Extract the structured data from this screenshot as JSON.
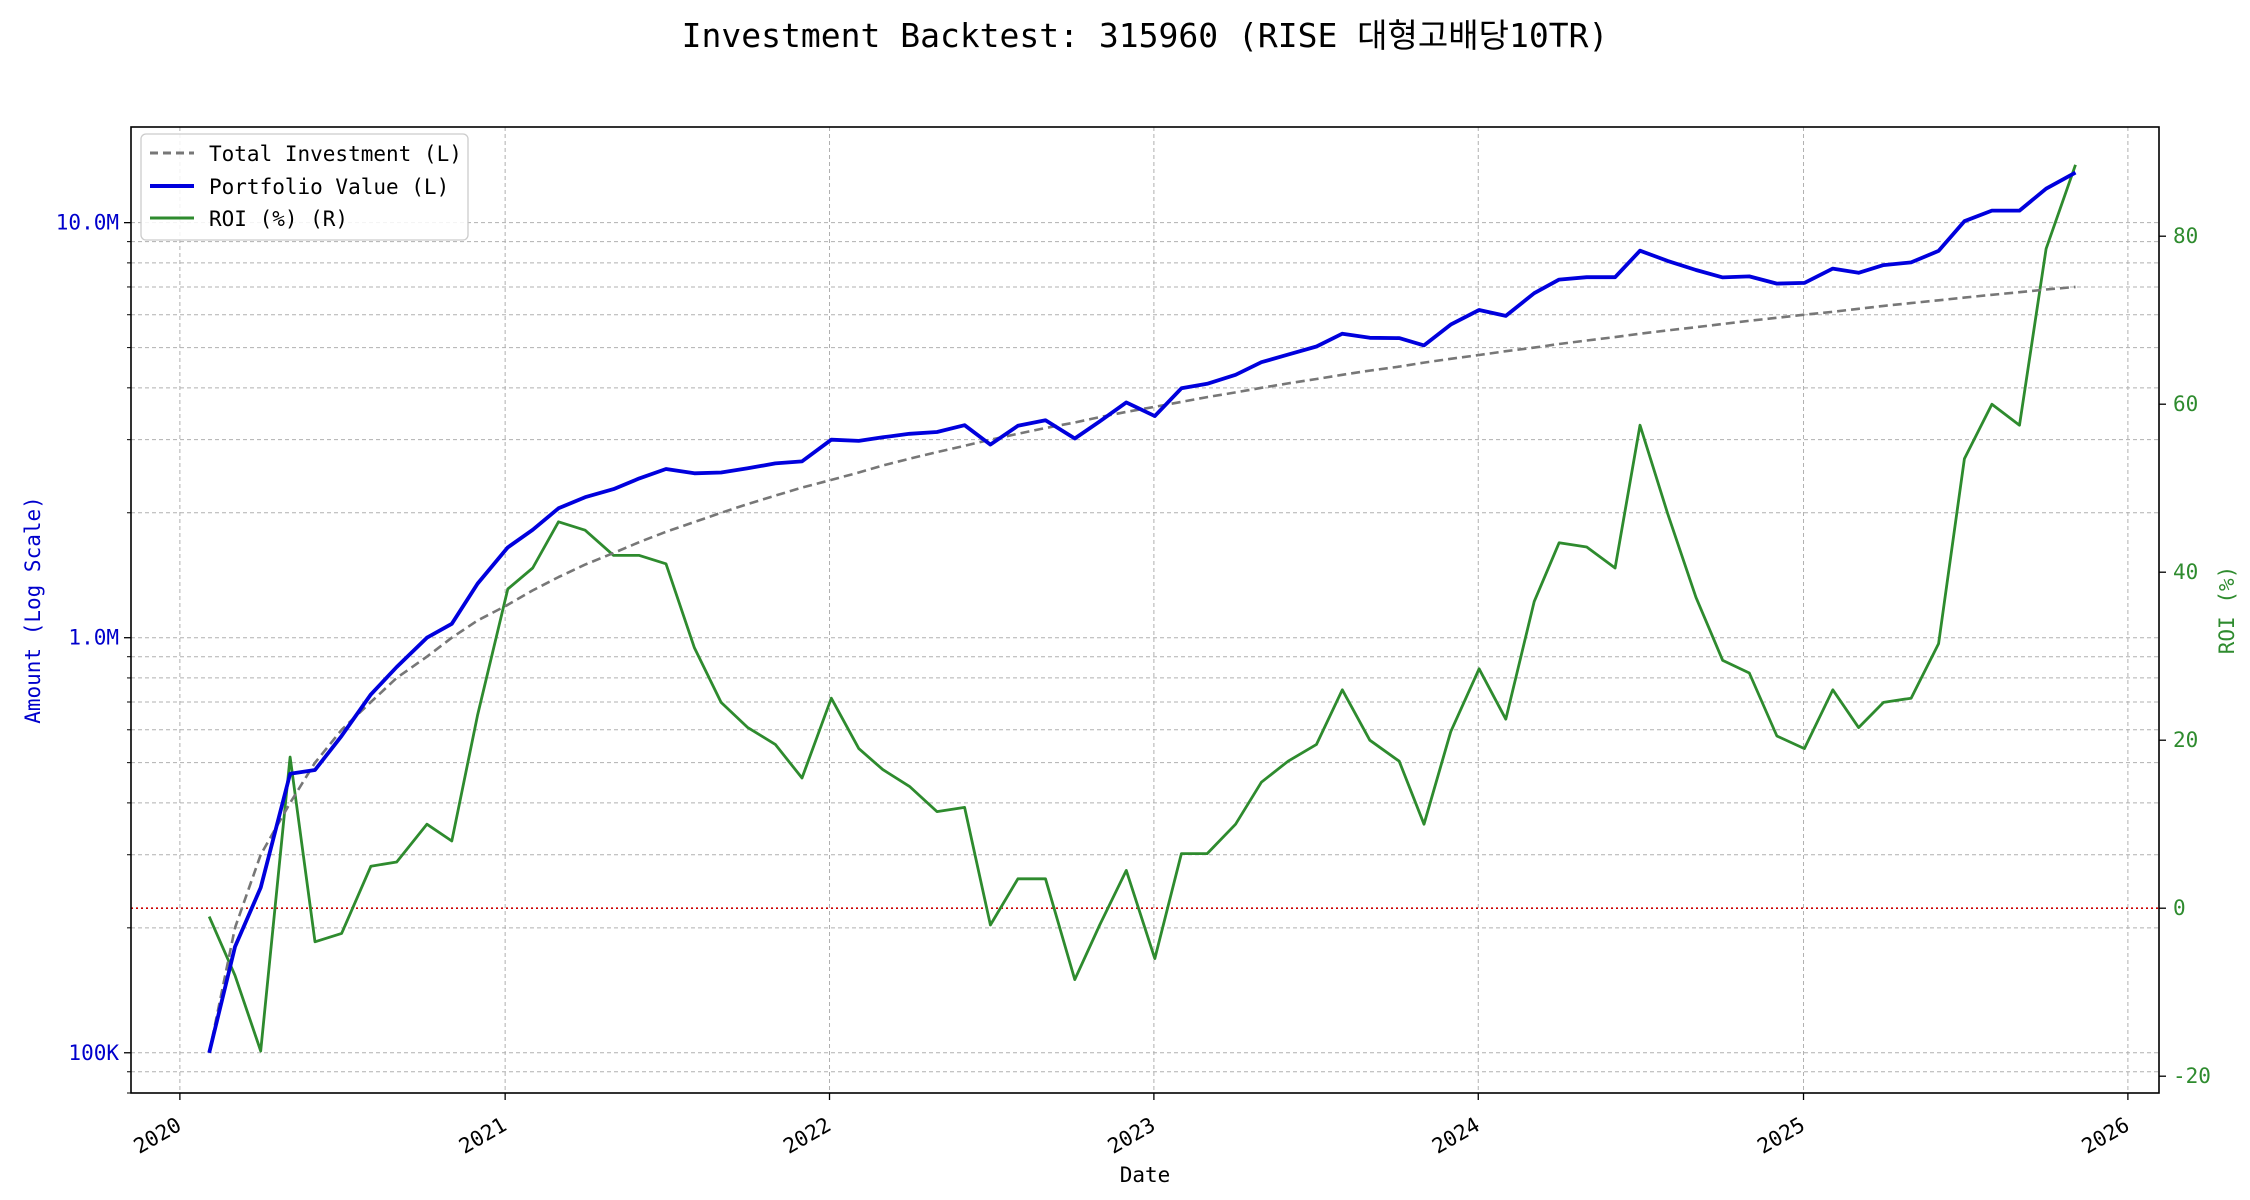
{
  "chart_data": {
    "type": "line",
    "title": "Investment Backtest: 315960 (RISE 대형고배당10TR)",
    "xlabel": "Date",
    "ylabel_left": "Amount (Log Scale)",
    "ylabel_right": "ROI (%)",
    "left_scale": "log",
    "left_ylim": [
      80000,
      17000000
    ],
    "right_ylim": [
      -22,
      93
    ],
    "xlim": [
      "2019-11-07",
      "2026-02-05"
    ],
    "grid": true,
    "legend_position": "top-left",
    "x_ticks": [
      {
        "date": "2020-01-01",
        "label": "2020"
      },
      {
        "date": "2021-01-01",
        "label": "2021"
      },
      {
        "date": "2022-01-01",
        "label": "2022"
      },
      {
        "date": "2023-01-01",
        "label": "2023"
      },
      {
        "date": "2024-01-01",
        "label": "2024"
      },
      {
        "date": "2025-01-01",
        "label": "2025"
      },
      {
        "date": "2026-01-01",
        "label": "2026"
      }
    ],
    "left_ticks": [
      {
        "value": 100000,
        "label": "100K"
      },
      {
        "value": 1000000,
        "label": "1.0M"
      },
      {
        "value": 10000000,
        "label": "10.0M"
      }
    ],
    "right_ticks": [
      -20,
      0,
      20,
      40,
      60,
      80
    ],
    "reference_line": {
      "axis": "right",
      "value": 0,
      "color": "#cc0000"
    },
    "dates": [
      "2020-02-03",
      "2020-03-03",
      "2020-04-01",
      "2020-05-04",
      "2020-06-01",
      "2020-07-01",
      "2020-08-03",
      "2020-09-01",
      "2020-10-05",
      "2020-11-02",
      "2020-12-01",
      "2021-01-04",
      "2021-02-01",
      "2021-03-02",
      "2021-04-01",
      "2021-05-03",
      "2021-06-01",
      "2021-07-01",
      "2021-08-02",
      "2021-09-01",
      "2021-10-01",
      "2021-11-01",
      "2021-12-01",
      "2022-01-03",
      "2022-02-03",
      "2022-03-02",
      "2022-04-01",
      "2022-05-02",
      "2022-06-02",
      "2022-07-01",
      "2022-08-01",
      "2022-09-01",
      "2022-10-04",
      "2022-11-01",
      "2022-12-01",
      "2023-01-02",
      "2023-02-01",
      "2023-03-02",
      "2023-04-03",
      "2023-05-02",
      "2023-06-01",
      "2023-07-03",
      "2023-08-01",
      "2023-09-01",
      "2023-10-04",
      "2023-11-01",
      "2023-12-01",
      "2024-01-02",
      "2024-02-01",
      "2024-03-04",
      "2024-04-01",
      "2024-05-02",
      "2024-06-03",
      "2024-07-01",
      "2024-08-01",
      "2024-09-02",
      "2024-10-02",
      "2024-11-01",
      "2024-12-02",
      "2025-01-02",
      "2025-02-03",
      "2025-03-04",
      "2025-04-01",
      "2025-05-02",
      "2025-06-02",
      "2025-07-01",
      "2025-08-01",
      "2025-09-01",
      "2025-10-01",
      "2025-11-03"
    ],
    "series": [
      {
        "name": "Total Investment (L)",
        "axis": "left",
        "color": "#777777",
        "style": "dashed",
        "values": [
          100000,
          200000,
          300000,
          400000,
          500000,
          600000,
          700000,
          800000,
          900000,
          1000000,
          1100000,
          1200000,
          1300000,
          1400000,
          1500000,
          1600000,
          1700000,
          1800000,
          1900000,
          2000000,
          2100000,
          2200000,
          2300000,
          2400000,
          2500000,
          2600000,
          2700000,
          2800000,
          2900000,
          3000000,
          3100000,
          3200000,
          3300000,
          3400000,
          3500000,
          3600000,
          3700000,
          3800000,
          3900000,
          4000000,
          4100000,
          4200000,
          4300000,
          4400000,
          4500000,
          4600000,
          4700000,
          4800000,
          4900000,
          5000000,
          5100000,
          5200000,
          5300000,
          5400000,
          5500000,
          5600000,
          5700000,
          5800000,
          5900000,
          6000000,
          6100000,
          6200000,
          6300000,
          6400000,
          6500000,
          6600000,
          6700000,
          6800000,
          6900000,
          7000000
        ]
      },
      {
        "name": "Portfolio Value (L)",
        "axis": "left",
        "color": "#0000dd",
        "style": "solid",
        "values": [
          100000,
          180000,
          250000,
          470000,
          480000,
          580000,
          730000,
          850000,
          1000000,
          1080000,
          1350000,
          1650000,
          1820000,
          2050000,
          2180000,
          2280000,
          2420000,
          2550000,
          2490000,
          2500000,
          2560000,
          2630000,
          2660000,
          3000000,
          2980000,
          3040000,
          3100000,
          3130000,
          3250000,
          2920000,
          3240000,
          3340000,
          3020000,
          3320000,
          3690000,
          3420000,
          3990000,
          4090000,
          4300000,
          4610000,
          4810000,
          5030000,
          5400000,
          5280000,
          5270000,
          5060000,
          5680000,
          6160000,
          5960000,
          6760000,
          7290000,
          7390000,
          7390000,
          8560000,
          8090000,
          7690000,
          7380000,
          7420000,
          7130000,
          7160000,
          7750000,
          7570000,
          7900000,
          8020000,
          8550000,
          10080000,
          10690000,
          10690000,
          12070000,
          13200000
        ]
      },
      {
        "name": "ROI (%) (R)",
        "axis": "right",
        "color": "#2e8b2e",
        "style": "solid",
        "values": [
          -1,
          -8,
          -17,
          18,
          -4,
          -3,
          5,
          5.5,
          10,
          8,
          23,
          38,
          40.5,
          46,
          45,
          42,
          42,
          41,
          31,
          24.5,
          21.5,
          19.5,
          15.5,
          25,
          19,
          16.5,
          14.5,
          11.5,
          12,
          -2,
          3.5,
          3.5,
          -8.5,
          -2,
          4.5,
          -6,
          6.5,
          6.5,
          10,
          15,
          17.5,
          19.5,
          26,
          20,
          17.5,
          10,
          21,
          28.5,
          22.5,
          36.5,
          43.5,
          43,
          40.5,
          57.5,
          47,
          37,
          29.5,
          28,
          20.5,
          19,
          26,
          21.5,
          24.5,
          25,
          31.5,
          53.5,
          60,
          57.5,
          78.5,
          88.5
        ]
      }
    ]
  }
}
